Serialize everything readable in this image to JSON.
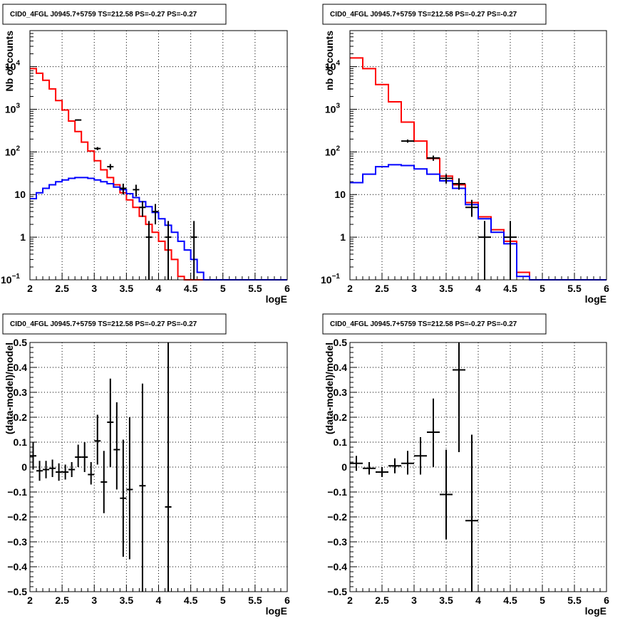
{
  "chart_data": [
    {
      "type": "line",
      "title": "CID0_4FGL J0945.7+5759 TS=212.58 PS=-0.27 PS=-0.27",
      "xlabel": "logE",
      "ylabel": "Nb of counts",
      "xlim": [
        2,
        6
      ],
      "ylim": [
        0.1,
        70000
      ],
      "yscale": "log",
      "grid": true,
      "xticks": [
        "2",
        "2.5",
        "3",
        "3.5",
        "4",
        "4.5",
        "5",
        "5.5",
        "6"
      ],
      "yticks": [
        "10^-1",
        "1",
        "10",
        "10^2",
        "10^3",
        "10^4"
      ],
      "bin_edges": [
        2.0,
        2.1,
        2.2,
        2.3,
        2.4,
        2.5,
        2.6,
        2.7,
        2.8,
        2.9,
        3.0,
        3.1,
        3.2,
        3.3,
        3.4,
        3.5,
        3.6,
        3.7,
        3.8,
        3.9,
        4.0,
        4.1,
        4.2,
        4.3,
        4.4,
        4.5,
        4.6,
        4.7,
        4.8,
        4.9,
        5.0,
        5.1,
        5.2,
        5.3,
        5.4,
        5.5,
        5.6,
        5.7,
        5.8,
        5.9,
        6.0
      ],
      "series": [
        {
          "color": "#ff0000",
          "style": "step",
          "values": [
            9000,
            7000,
            4800,
            3000,
            1600,
            960,
            530,
            300,
            170,
            105,
            62,
            38,
            25,
            17,
            11,
            7.5,
            5,
            3.1,
            2,
            1.3,
            0.8,
            0.5,
            0.3,
            0.12,
            0.1,
            0.1,
            0.1,
            0.1,
            0.1,
            0.1,
            0.1,
            0.1,
            0.1,
            0.1,
            0.1,
            0.1,
            0.1,
            0.1,
            0.1,
            0.1
          ]
        },
        {
          "color": "#0000ff",
          "style": "step",
          "values": [
            8,
            11,
            14,
            17,
            20,
            22,
            24,
            25,
            25,
            24,
            22,
            20,
            18,
            15,
            13,
            10.5,
            8.5,
            6.8,
            5.2,
            3.8,
            2.7,
            1.9,
            1.3,
            0.8,
            0.5,
            0.3,
            0.15,
            0.1,
            0.1,
            0.1,
            0.1,
            0.1,
            0.1,
            0.1,
            0.1,
            0.1,
            0.1,
            0.1,
            0.1,
            0.1
          ]
        },
        {
          "color": "#000000",
          "style": "errorbar",
          "points": [
            {
              "x": 2.75,
              "y": 560,
              "lo": 540,
              "hi": 580
            },
            {
              "x": 3.05,
              "y": 120,
              "lo": 110,
              "hi": 130
            },
            {
              "x": 3.25,
              "y": 45,
              "lo": 38,
              "hi": 52
            },
            {
              "x": 3.45,
              "y": 14,
              "lo": 10,
              "hi": 18
            },
            {
              "x": 3.65,
              "y": 13,
              "lo": 9,
              "hi": 17
            },
            {
              "x": 3.75,
              "y": 5,
              "lo": 3,
              "hi": 7
            },
            {
              "x": 3.85,
              "y": 1,
              "lo": 0.1,
              "hi": 2.4
            },
            {
              "x": 3.95,
              "y": 4,
              "lo": 2,
              "hi": 6
            },
            {
              "x": 4.15,
              "y": 1,
              "lo": 0.1,
              "hi": 2.4
            },
            {
              "x": 4.55,
              "y": 1,
              "lo": 0.1,
              "hi": 2.4
            }
          ]
        }
      ]
    },
    {
      "type": "line",
      "title": "CID0_4FGL J0945.7+5759 TS=212.58 PS=-0.27 PS=-0.27",
      "xlabel": "logE",
      "ylabel": "nb of counts",
      "xlim": [
        2,
        6
      ],
      "ylim": [
        0.1,
        70000
      ],
      "yscale": "log",
      "grid": true,
      "xticks": [
        "2",
        "2.5",
        "3",
        "3.5",
        "4",
        "4.5",
        "5",
        "5.5",
        "6"
      ],
      "yticks": [
        "10^-1",
        "1",
        "10",
        "10^2",
        "10^3",
        "10^4"
      ],
      "bin_edges": [
        2.0,
        2.2,
        2.4,
        2.6,
        2.8,
        3.0,
        3.2,
        3.4,
        3.6,
        3.8,
        4.0,
        4.2,
        4.4,
        4.6,
        4.8,
        5.0,
        5.2,
        5.4,
        5.6,
        5.8,
        6.0
      ],
      "series": [
        {
          "color": "#ff0000",
          "style": "step",
          "values": [
            16000,
            9000,
            3800,
            1500,
            500,
            180,
            70,
            27,
            17,
            6.5,
            3,
            1.5,
            0.8,
            0.15,
            0.1,
            0.1,
            0.1,
            0.1,
            0.1,
            0.1
          ]
        },
        {
          "color": "#0000ff",
          "style": "step",
          "values": [
            19,
            30,
            45,
            50,
            48,
            40,
            30,
            21,
            14,
            5.8,
            2.7,
            1.3,
            0.7,
            0.12,
            0.1,
            0.1,
            0.1,
            0.1,
            0.1,
            0.1
          ]
        },
        {
          "color": "#000000",
          "style": "errorbar",
          "points": [
            {
              "x": 2.9,
              "y": 180,
              "lo": 165,
              "hi": 195
            },
            {
              "x": 3.3,
              "y": 72,
              "lo": 62,
              "hi": 82
            },
            {
              "x": 3.5,
              "y": 24,
              "lo": 18,
              "hi": 30
            },
            {
              "x": 3.7,
              "y": 18,
              "lo": 13,
              "hi": 24
            },
            {
              "x": 3.9,
              "y": 5,
              "lo": 3,
              "hi": 7.5
            },
            {
              "x": 4.1,
              "y": 1,
              "lo": 0.1,
              "hi": 2.4
            },
            {
              "x": 4.5,
              "y": 1,
              "lo": 0.1,
              "hi": 2.4
            }
          ]
        }
      ]
    },
    {
      "type": "scatter",
      "title": "CID0_4FGL J0945.7+5759 TS=212.58 PS=-0.27 PS=-0.27",
      "xlabel": "logE",
      "ylabel": "(data-model)/model",
      "xlim": [
        2,
        6
      ],
      "ylim": [
        -0.5,
        0.5
      ],
      "grid": true,
      "xticks": [
        "2",
        "2.5",
        "3",
        "3.5",
        "4",
        "4.5",
        "5",
        "5.5",
        "6"
      ],
      "yticks": [
        "−0.5",
        "−0.4",
        "−0.3",
        "−0.2",
        "−0.1",
        "0",
        "0.1",
        "0.2",
        "0.3",
        "0.4",
        "0.5"
      ],
      "series": [
        {
          "color": "#000000",
          "style": "errorbar",
          "xerr": 0.05,
          "points": [
            {
              "x": 2.05,
              "y": 0.045,
              "lo": -0.01,
              "hi": 0.1
            },
            {
              "x": 2.15,
              "y": -0.015,
              "lo": -0.055,
              "hi": 0.025
            },
            {
              "x": 2.25,
              "y": -0.01,
              "lo": -0.045,
              "hi": 0.025
            },
            {
              "x": 2.35,
              "y": -0.005,
              "lo": -0.04,
              "hi": 0.03
            },
            {
              "x": 2.45,
              "y": -0.02,
              "lo": -0.055,
              "hi": 0.015
            },
            {
              "x": 2.55,
              "y": -0.02,
              "lo": -0.05,
              "hi": 0.01
            },
            {
              "x": 2.65,
              "y": -0.01,
              "lo": -0.04,
              "hi": 0.02
            },
            {
              "x": 2.75,
              "y": 0.04,
              "lo": 0.0,
              "hi": 0.09
            },
            {
              "x": 2.85,
              "y": 0.04,
              "lo": -0.02,
              "hi": 0.1
            },
            {
              "x": 2.95,
              "y": -0.03,
              "lo": -0.07,
              "hi": 0.02
            },
            {
              "x": 3.05,
              "y": 0.105,
              "lo": 0.01,
              "hi": 0.21
            },
            {
              "x": 3.15,
              "y": -0.06,
              "lo": -0.185,
              "hi": 0.065
            },
            {
              "x": 3.25,
              "y": 0.18,
              "lo": 0.0,
              "hi": 0.355
            },
            {
              "x": 3.35,
              "y": 0.07,
              "lo": -0.09,
              "hi": 0.26
            },
            {
              "x": 3.45,
              "y": -0.125,
              "lo": -0.36,
              "hi": 0.11
            },
            {
              "x": 3.55,
              "y": -0.09,
              "lo": -0.37,
              "hi": 0.2
            },
            {
              "x": 3.75,
              "y": -0.075,
              "lo": -0.5,
              "hi": 0.335
            },
            {
              "x": 4.15,
              "y": -0.16,
              "lo": -0.5,
              "hi": 0.5
            }
          ]
        }
      ]
    },
    {
      "type": "scatter",
      "title": "CID0_4FGL J0945.7+5759 TS=212.58 PS=-0.27 PS=-0.27",
      "xlabel": "logE",
      "ylabel": "(data-model)/model",
      "xlim": [
        2,
        6
      ],
      "ylim": [
        -0.5,
        0.5
      ],
      "grid": true,
      "xticks": [
        "2",
        "2.5",
        "3",
        "3.5",
        "4",
        "4.5",
        "5",
        "5.5",
        "6"
      ],
      "yticks": [
        "−0.5",
        "−0.4",
        "−0.3",
        "−0.2",
        "−0.1",
        "0",
        "0.1",
        "0.2",
        "0.3",
        "0.4",
        "0.5"
      ],
      "series": [
        {
          "color": "#000000",
          "style": "errorbar",
          "xerr": 0.1,
          "points": [
            {
              "x": 2.1,
              "y": 0.015,
              "lo": -0.015,
              "hi": 0.045
            },
            {
              "x": 2.3,
              "y": -0.005,
              "lo": -0.03,
              "hi": 0.02
            },
            {
              "x": 2.5,
              "y": -0.02,
              "lo": -0.04,
              "hi": 0.0
            },
            {
              "x": 2.7,
              "y": 0.005,
              "lo": -0.025,
              "hi": 0.035
            },
            {
              "x": 2.9,
              "y": 0.015,
              "lo": -0.03,
              "hi": 0.065
            },
            {
              "x": 3.1,
              "y": 0.045,
              "lo": -0.03,
              "hi": 0.12
            },
            {
              "x": 3.3,
              "y": 0.14,
              "lo": 0.0,
              "hi": 0.275
            },
            {
              "x": 3.5,
              "y": -0.11,
              "lo": -0.29,
              "hi": 0.07
            },
            {
              "x": 3.7,
              "y": 0.39,
              "lo": 0.06,
              "hi": 0.5
            },
            {
              "x": 3.9,
              "y": -0.215,
              "lo": -0.5,
              "hi": 0.13
            }
          ]
        }
      ]
    }
  ]
}
